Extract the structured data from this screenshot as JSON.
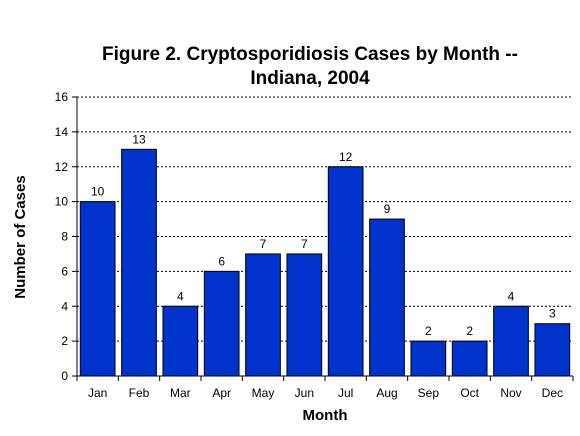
{
  "chart_data": {
    "type": "bar",
    "title_line1": "Figure 2. Cryptosporidiosis Cases by Month --",
    "title_line2": "Indiana, 2004",
    "xlabel": "Month",
    "ylabel": "Number of Cases",
    "categories": [
      "Jan",
      "Feb",
      "Mar",
      "Apr",
      "May",
      "Jun",
      "Jul",
      "Aug",
      "Sep",
      "Oct",
      "Nov",
      "Dec"
    ],
    "values": [
      10,
      13,
      4,
      6,
      7,
      7,
      12,
      9,
      2,
      2,
      4,
      3
    ],
    "value_labels": [
      "10",
      "13",
      "4",
      "6",
      "7",
      "7",
      "12",
      "9",
      "2",
      "2",
      "4",
      "3"
    ],
    "ylim": [
      0,
      16
    ],
    "yticks": [
      "0",
      "2",
      "4",
      "6",
      "8",
      "10",
      "12",
      "14",
      "16"
    ],
    "grid": "horizontal dashed",
    "legend": "none",
    "bar_color": "#0033cc"
  }
}
